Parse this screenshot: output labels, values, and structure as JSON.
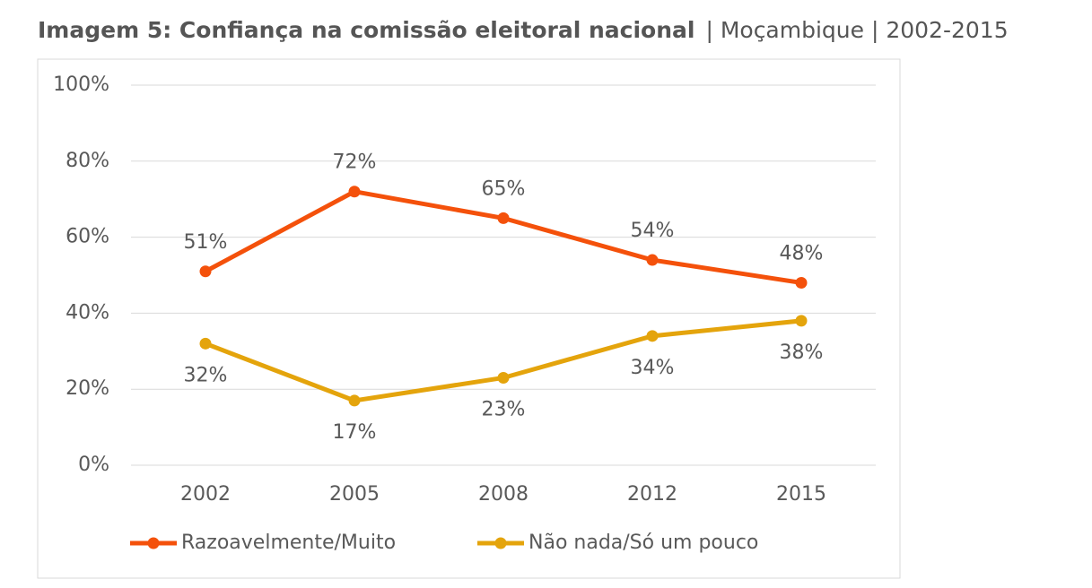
{
  "chart_data": {
    "type": "line",
    "title": "Imagem 5: Confiança na comissão eleitoral nacional",
    "subtitle": "| Moçambique | 2002-2015",
    "categories": [
      "2002",
      "2005",
      "2008",
      "2012",
      "2015"
    ],
    "series": [
      {
        "name": "Razoavelmente/Muito",
        "color": "#f4510b",
        "values": [
          51,
          72,
          65,
          54,
          48
        ],
        "value_labels": [
          "51%",
          "72%",
          "65%",
          "54%",
          "48%"
        ]
      },
      {
        "name": "Não  nada/Só um pouco",
        "color": "#e4a40c",
        "values": [
          32,
          17,
          23,
          34,
          38
        ],
        "value_labels": [
          "32%",
          "17%",
          "23%",
          "34%",
          "38%"
        ]
      }
    ],
    "ylim": [
      0,
      100
    ],
    "yticks": [
      {
        "value": 0,
        "label": "0%"
      },
      {
        "value": 20,
        "label": "20%"
      },
      {
        "value": 40,
        "label": "40%"
      },
      {
        "value": 60,
        "label": "60%"
      },
      {
        "value": 80,
        "label": "80%"
      },
      {
        "value": 100,
        "label": "100%"
      }
    ],
    "grid": true,
    "legend": "bottom"
  }
}
